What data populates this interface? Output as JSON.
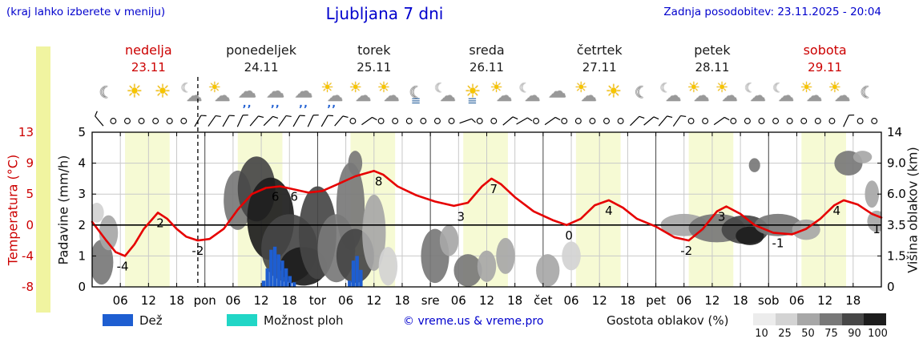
{
  "header": {
    "menu_hint": "(kraj lahko izberete v meniju)",
    "title": "Ljubljana 7 dni",
    "last_update": "Zadnja posodobitev: 23.11.2025 - 20:04"
  },
  "colors": {
    "accent_blue": "#0000cd",
    "highlight_red": "#cc0000",
    "temp_line": "#e60000",
    "rain_bar": "#1e5ed1",
    "showers": "#21d6c6",
    "daylight_band": "#f6fad4",
    "left_strip": "#f0f4a0",
    "grid": "#c9c9c9",
    "density_scale": [
      "#ececec",
      "#d3d3d3",
      "#a7a7a7",
      "#787878",
      "#474747",
      "#1d1d1d"
    ]
  },
  "days": [
    {
      "name": "nedelja",
      "date": "23.11",
      "highlight": true
    },
    {
      "name": "ponedeljek",
      "date": "24.11",
      "highlight": false
    },
    {
      "name": "torek",
      "date": "25.11",
      "highlight": false
    },
    {
      "name": "sreda",
      "date": "26.11",
      "highlight": false
    },
    {
      "name": "četrtek",
      "date": "27.11",
      "highlight": false
    },
    {
      "name": "petek",
      "date": "28.11",
      "highlight": false
    },
    {
      "name": "sobota",
      "date": "29.11",
      "highlight": true
    }
  ],
  "axes": {
    "temp_label": "Temperatura (°C)",
    "temp_ticks": [
      "13",
      "9",
      "5",
      "0",
      "-4",
      "-8"
    ],
    "precip_label": "Padavine (mm/h)",
    "precip_ticks": [
      "5",
      "4",
      "3",
      "2",
      "1",
      "0"
    ],
    "cloud_label": "Višina oblakov (km)",
    "cloud_ticks": [
      "14",
      "9.0",
      "6.0",
      "3.5",
      "1.5",
      "0"
    ],
    "x_ticks": [
      {
        "h": 6,
        "label": "06"
      },
      {
        "h": 12,
        "label": "12"
      },
      {
        "h": 18,
        "label": "18"
      },
      {
        "h": 24,
        "label": "pon"
      },
      {
        "h": 30,
        "label": "06"
      },
      {
        "h": 36,
        "label": "12"
      },
      {
        "h": 42,
        "label": "18"
      },
      {
        "h": 48,
        "label": "tor"
      },
      {
        "h": 54,
        "label": "06"
      },
      {
        "h": 60,
        "label": "12"
      },
      {
        "h": 66,
        "label": "18"
      },
      {
        "h": 72,
        "label": "sre"
      },
      {
        "h": 78,
        "label": "06"
      },
      {
        "h": 84,
        "label": "12"
      },
      {
        "h": 90,
        "label": "18"
      },
      {
        "h": 96,
        "label": "čet"
      },
      {
        "h": 102,
        "label": "06"
      },
      {
        "h": 108,
        "label": "12"
      },
      {
        "h": 114,
        "label": "18"
      },
      {
        "h": 120,
        "label": "pet"
      },
      {
        "h": 126,
        "label": "06"
      },
      {
        "h": 132,
        "label": "12"
      },
      {
        "h": 138,
        "label": "18"
      },
      {
        "h": 144,
        "label": "sob"
      },
      {
        "h": 150,
        "label": "06"
      },
      {
        "h": 156,
        "label": "12"
      },
      {
        "h": 162,
        "label": "18"
      }
    ]
  },
  "legend": {
    "rain_label": "Dež",
    "showers_label": "Možnost ploh",
    "copyright": "© vreme.us & vreme.pro",
    "cloud_density_label": "Gostota oblakov (%)",
    "density_ticks": [
      "10",
      "25",
      "50",
      "75",
      "90",
      "100"
    ]
  },
  "chart_data": {
    "type": "line",
    "description": "7-day meteogram: temperature line (°C), precipitation bars (mm/h), cloud cover blobs by height (km), wind symbols, weather icons; x axis = hours 0–168 from Sunday 00:00",
    "x_range_hours": [
      0,
      168
    ],
    "precip_axis_mm": [
      0,
      5
    ],
    "temp_axis_c": [
      -8,
      -4,
      0,
      5,
      9,
      13
    ],
    "cloud_axis_km": [
      0,
      1.5,
      3.5,
      6.0,
      9.0,
      14
    ],
    "daylight_band_hours": {
      "start": 7,
      "end": 16.5
    },
    "now_line_hour": 22.5,
    "temp_series": [
      [
        0,
        0.5
      ],
      [
        3,
        -2
      ],
      [
        5,
        -3.5
      ],
      [
        7,
        -4
      ],
      [
        9,
        -2.5
      ],
      [
        11,
        -0.5
      ],
      [
        14,
        2
      ],
      [
        16,
        1
      ],
      [
        18,
        -0.5
      ],
      [
        20,
        -1.5
      ],
      [
        22.5,
        -2
      ],
      [
        25,
        -1.8
      ],
      [
        28,
        -0.5
      ],
      [
        31,
        2.5
      ],
      [
        34,
        5
      ],
      [
        37,
        5.8
      ],
      [
        40,
        6
      ],
      [
        43,
        5.6
      ],
      [
        46,
        5.2
      ],
      [
        49,
        5.4
      ],
      [
        52,
        6.2
      ],
      [
        56,
        7.3
      ],
      [
        60,
        8
      ],
      [
        62,
        7.5
      ],
      [
        65,
        6
      ],
      [
        69,
        4.8
      ],
      [
        73,
        3.8
      ],
      [
        77,
        3.1
      ],
      [
        80,
        3.6
      ],
      [
        83,
        6
      ],
      [
        85,
        7
      ],
      [
        87,
        6.3
      ],
      [
        90,
        4.5
      ],
      [
        94,
        2.2
      ],
      [
        98,
        0.8
      ],
      [
        101,
        0
      ],
      [
        104,
        1
      ],
      [
        107,
        3.2
      ],
      [
        110,
        4
      ],
      [
        113,
        2.8
      ],
      [
        116,
        1
      ],
      [
        120,
        -0.2
      ],
      [
        124,
        -1.6
      ],
      [
        127,
        -2
      ],
      [
        130,
        -0.5
      ],
      [
        133,
        2.2
      ],
      [
        135,
        3
      ],
      [
        138,
        1.8
      ],
      [
        141,
        0
      ],
      [
        145,
        -1
      ],
      [
        149,
        -1.2
      ],
      [
        152,
        -0.5
      ],
      [
        155,
        1
      ],
      [
        158,
        3.2
      ],
      [
        160,
        4
      ],
      [
        163,
        3.3
      ],
      [
        166,
        1.8
      ],
      [
        168,
        1.2
      ]
    ],
    "temp_point_labels": [
      {
        "h": 6.5,
        "v": "-4"
      },
      {
        "h": 14.5,
        "v": "2"
      },
      {
        "h": 22.5,
        "v": "-2"
      },
      {
        "h": 39,
        "v": "6"
      },
      {
        "h": 43,
        "v": "6"
      },
      {
        "h": 61,
        "v": "8"
      },
      {
        "h": 78.5,
        "v": "3"
      },
      {
        "h": 85.5,
        "v": "7"
      },
      {
        "h": 101.5,
        "v": "0"
      },
      {
        "h": 110,
        "v": "4"
      },
      {
        "h": 126.5,
        "v": "-2"
      },
      {
        "h": 134,
        "v": "3"
      },
      {
        "h": 146,
        "v": "-1"
      },
      {
        "h": 158.5,
        "v": "4"
      },
      {
        "h": 167,
        "v": "1"
      }
    ],
    "precip_bars_mm": [
      [
        36.5,
        0.2
      ],
      [
        37.3,
        0.6
      ],
      [
        38.1,
        1.2
      ],
      [
        38.9,
        1.3
      ],
      [
        39.7,
        1.05
      ],
      [
        40.5,
        0.85
      ],
      [
        41.3,
        0.6
      ],
      [
        42.1,
        0.35
      ],
      [
        43,
        0.15
      ],
      [
        54.8,
        0.2
      ],
      [
        55.6,
        0.85
      ],
      [
        56.4,
        1.0
      ],
      [
        57.2,
        0.55
      ]
    ],
    "cloud_blobs": [
      [
        2,
        1.2,
        2.5,
        1.2,
        75
      ],
      [
        3.5,
        3,
        2,
        1.2,
        50
      ],
      [
        1,
        4.5,
        1.5,
        0.8,
        25
      ],
      [
        31,
        5.5,
        3,
        2.5,
        75
      ],
      [
        35,
        6.5,
        4,
        3,
        90
      ],
      [
        38,
        4,
        5,
        3,
        100
      ],
      [
        42,
        2,
        6,
        2,
        90
      ],
      [
        45,
        1,
        5,
        1,
        100
      ],
      [
        48,
        3,
        4,
        3,
        90
      ],
      [
        52,
        2,
        4,
        2,
        75
      ],
      [
        55,
        5,
        3,
        3.5,
        75
      ],
      [
        56,
        1.5,
        4,
        1.5,
        90
      ],
      [
        56,
        9,
        1.5,
        1.5,
        75
      ],
      [
        60,
        3,
        2.5,
        2.5,
        50
      ],
      [
        63,
        1,
        2,
        1,
        25
      ],
      [
        73,
        1.5,
        3,
        1.5,
        75
      ],
      [
        76,
        2.5,
        2,
        1,
        50
      ],
      [
        80,
        0.8,
        3,
        0.8,
        75
      ],
      [
        84,
        1,
        2,
        0.8,
        50
      ],
      [
        88,
        1.5,
        2,
        1,
        50
      ],
      [
        97,
        0.8,
        2.5,
        0.8,
        50
      ],
      [
        102,
        1.5,
        2,
        0.8,
        25
      ],
      [
        126,
        3.5,
        5,
        0.8,
        50
      ],
      [
        133,
        3.3,
        6,
        1,
        75
      ],
      [
        139,
        3.2,
        5,
        1,
        90
      ],
      [
        140,
        2.8,
        3,
        0.6,
        100
      ],
      [
        141,
        8.8,
        1.2,
        0.8,
        75
      ],
      [
        146,
        3.5,
        5,
        0.8,
        75
      ],
      [
        152,
        3.2,
        3,
        0.7,
        50
      ],
      [
        161,
        9,
        3,
        1.5,
        75
      ],
      [
        164,
        10,
        2,
        1,
        50
      ],
      [
        166,
        6,
        1.5,
        1.2,
        50
      ],
      [
        167,
        3.8,
        2,
        0.8,
        50
      ]
    ],
    "wind_symbols": [
      "b-40",
      "c",
      "c",
      "c",
      "c",
      "c",
      "c",
      "b30",
      "b35",
      "b30",
      "b25",
      "b40",
      "b45",
      "b35",
      "b30",
      "b25",
      "b30",
      "b40",
      "c",
      "b55",
      "c",
      "c",
      "c",
      "c",
      "c",
      "c",
      "b70",
      "c",
      "c",
      "b50",
      "b60",
      "c",
      "b55",
      "c",
      "c",
      "c",
      "c",
      "c",
      "b45",
      "b50",
      "b40",
      "b35",
      "c",
      "c",
      "b55",
      "c",
      "c",
      "c",
      "c",
      "c",
      "c",
      "c",
      "c",
      "b25",
      "c",
      "c"
    ],
    "weather_icons": [
      "moon",
      "sun",
      "sun",
      "moon-cloud",
      "partly",
      "rain",
      "rain",
      "rain",
      "rain-sun",
      "partly",
      "partly",
      "moon-lines",
      "cloud-moon",
      "sun-lines",
      "partly",
      "moon-cloud",
      "cloud",
      "partly",
      "sun",
      "moon",
      "cloud-moon",
      "partly",
      "partly",
      "moon-cloud",
      "moon-cloud",
      "partly",
      "partly",
      "moon"
    ]
  }
}
